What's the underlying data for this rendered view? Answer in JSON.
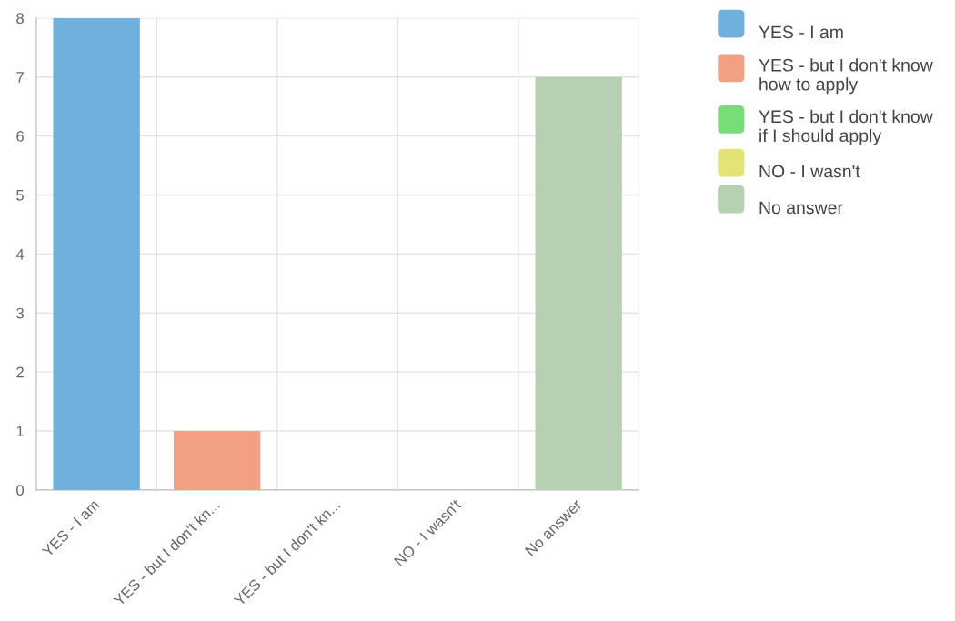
{
  "chart_data": {
    "type": "bar",
    "categories": [
      "YES - I am",
      "YES - but I don't kn...",
      "YES - but I don't kn...",
      "NO - I wasn't",
      "No answer"
    ],
    "series": [
      {
        "name": "YES - I am",
        "color": "#6fb1dc",
        "values": [
          8,
          null,
          null,
          null,
          null
        ]
      },
      {
        "name": "YES - but I don't know\nhow to apply",
        "color": "#f1a084",
        "values": [
          null,
          1,
          null,
          null,
          null
        ]
      },
      {
        "name": "YES - but I don't know\nif I should apply",
        "color": "#77dd77",
        "values": [
          null,
          null,
          0,
          null,
          null
        ]
      },
      {
        "name": "NO - I wasn't",
        "color": "#e2e476",
        "values": [
          null,
          null,
          null,
          0,
          null
        ]
      },
      {
        "name": "No answer",
        "color": "#b6d1b2",
        "values": [
          null,
          null,
          null,
          null,
          7
        ]
      }
    ],
    "ylim": [
      0,
      8
    ],
    "yticks": [
      0,
      1,
      2,
      3,
      4,
      5,
      6,
      7,
      8
    ],
    "grid": true,
    "legend": "right"
  }
}
